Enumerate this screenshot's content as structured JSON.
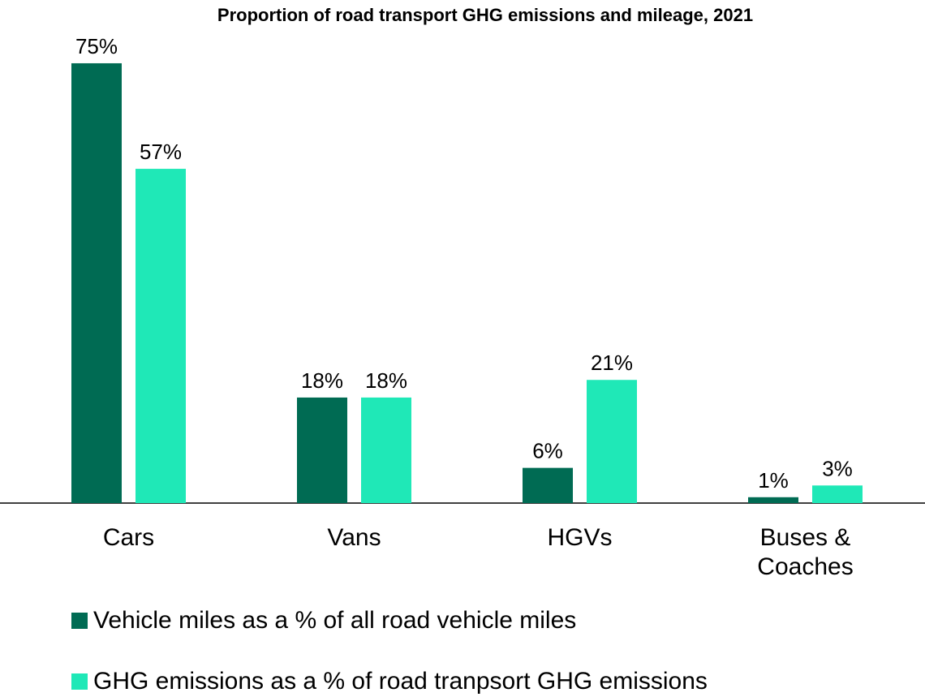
{
  "chart_data": {
    "type": "bar",
    "title": "Proportion of road transport GHG emissions and mileage, 2021",
    "categories": [
      "Cars",
      "Vans",
      "HGVs",
      "Buses & Coaches"
    ],
    "series": [
      {
        "name": "Vehicle miles as a % of all road vehicle miles",
        "color": "#006b53",
        "values": [
          75,
          18,
          6,
          1
        ],
        "value_labels": [
          "75%",
          "18%",
          "6%",
          "1%"
        ]
      },
      {
        "name": "GHG emissions as a % of road tranpsort GHG emissions",
        "color": "#1fe8b7",
        "values": [
          57,
          18,
          21,
          3
        ],
        "value_labels": [
          "57%",
          "18%",
          "21%",
          "3%"
        ]
      }
    ],
    "legend": "bottom"
  }
}
